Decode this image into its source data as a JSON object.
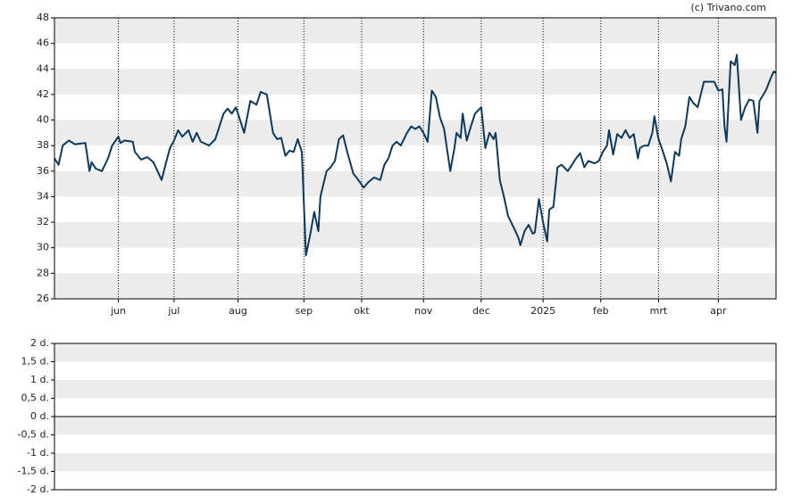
{
  "credit": "(c) Trivano.com",
  "chart_data": [
    {
      "type": "line",
      "grid": true,
      "band_color": "#ececec",
      "xlim": [
        0,
        350
      ],
      "xticks": [
        {
          "value": 31,
          "label": "jun"
        },
        {
          "value": 58,
          "label": "jul"
        },
        {
          "value": 89,
          "label": "aug"
        },
        {
          "value": 121,
          "label": "sep"
        },
        {
          "value": 149,
          "label": "okt"
        },
        {
          "value": 179,
          "label": "nov"
        },
        {
          "value": 207,
          "label": "dec"
        },
        {
          "value": 237,
          "label": "2025"
        },
        {
          "value": 265,
          "label": "feb"
        },
        {
          "value": 293,
          "label": "mrt"
        },
        {
          "value": 322,
          "label": "apr"
        }
      ],
      "ylim": [
        26,
        48
      ],
      "yticks": [
        26,
        28,
        30,
        32,
        34,
        36,
        38,
        40,
        42,
        44,
        46,
        48
      ],
      "series": [
        {
          "color": "#0d3a5c",
          "x": [
            0,
            2,
            4,
            7,
            10,
            15,
            17,
            18,
            20,
            23,
            26,
            28,
            31,
            32,
            34,
            38,
            39,
            42,
            45,
            48,
            52,
            54,
            56,
            58,
            60,
            62,
            65,
            67,
            69,
            71,
            75,
            78,
            80,
            82,
            84,
            86,
            88,
            90,
            92,
            95,
            98,
            100,
            103,
            106,
            108,
            110,
            112,
            114,
            116,
            118,
            120,
            122,
            124,
            126,
            128,
            129,
            132,
            134,
            136,
            138,
            140,
            142,
            145,
            147,
            150,
            152,
            155,
            158,
            160,
            162,
            164,
            166,
            168,
            171,
            173,
            175,
            177,
            179,
            181,
            183,
            185,
            187,
            189,
            192,
            194,
            195,
            197,
            198,
            200,
            202,
            204,
            207,
            209,
            211,
            213,
            214,
            216,
            218,
            220,
            223,
            225,
            226,
            228,
            230,
            232,
            233,
            235,
            237,
            239,
            240,
            242,
            244,
            246,
            249,
            251,
            253,
            255,
            257,
            259,
            262,
            264,
            266,
            268,
            269,
            271,
            273,
            275,
            277,
            279,
            281,
            283,
            284,
            286,
            288,
            290,
            291,
            293,
            295,
            297,
            299,
            301,
            303,
            304,
            306,
            308,
            310,
            312,
            315,
            318,
            320,
            322,
            324,
            325,
            326,
            328,
            330,
            331,
            333,
            335,
            337,
            339,
            341,
            342,
            345,
            348,
            349,
            350
          ],
          "values": [
            37.0,
            36.5,
            38.0,
            38.4,
            38.1,
            38.2,
            36.0,
            36.7,
            36.2,
            36.0,
            37.0,
            38.0,
            38.7,
            38.2,
            38.4,
            38.3,
            37.5,
            36.9,
            37.1,
            36.7,
            35.3,
            36.6,
            37.8,
            38.4,
            39.2,
            38.7,
            39.2,
            38.3,
            39.0,
            38.3,
            38.0,
            38.5,
            39.5,
            40.5,
            40.9,
            40.5,
            41.0,
            40.0,
            39.0,
            41.5,
            41.2,
            42.2,
            42.0,
            39.0,
            38.5,
            38.6,
            37.2,
            37.6,
            37.5,
            38.5,
            37.5,
            29.4,
            31.0,
            32.8,
            31.3,
            34.0,
            36.0,
            36.3,
            36.8,
            38.5,
            38.8,
            37.5,
            35.8,
            35.4,
            34.7,
            35.1,
            35.5,
            35.3,
            36.5,
            37.0,
            38.0,
            38.3,
            38.0,
            39.0,
            39.5,
            39.3,
            39.5,
            39.0,
            38.3,
            42.3,
            41.8,
            40.2,
            39.3,
            36.0,
            37.8,
            39.0,
            38.6,
            40.5,
            38.4,
            39.5,
            40.5,
            41.0,
            37.8,
            39.0,
            38.5,
            39.0,
            35.3,
            34.0,
            32.5,
            31.5,
            30.8,
            30.2,
            31.3,
            31.8,
            31.1,
            31.2,
            33.8,
            32.0,
            30.5,
            33.0,
            33.2,
            36.3,
            36.5,
            36.0,
            36.5,
            37.0,
            37.4,
            36.3,
            36.8,
            36.6,
            36.8,
            37.5,
            38.0,
            39.2,
            37.3,
            38.9,
            38.6,
            39.2,
            38.6,
            38.9,
            37.0,
            37.8,
            38.0,
            38.0,
            39.0,
            40.3,
            38.5,
            37.6,
            36.6,
            35.2,
            37.5,
            37.2,
            38.5,
            39.5,
            41.8,
            41.3,
            41.0,
            43.0,
            43.0,
            43.0,
            42.3,
            42.4,
            39.5,
            38.3,
            44.6,
            44.3,
            45.1,
            40.0,
            41.0,
            41.6,
            41.5,
            39.0,
            41.5,
            42.3,
            43.5,
            43.8,
            43.7
          ]
        }
      ]
    },
    {
      "type": "line",
      "grid": true,
      "band_color": "#ececec",
      "ylim": [
        -2,
        2
      ],
      "yticks": [
        {
          "value": -2,
          "label": "-2 d."
        },
        {
          "value": -1.5,
          "label": "-1,5 d."
        },
        {
          "value": -1,
          "label": "-1 d."
        },
        {
          "value": -0.5,
          "label": "-0,5 d."
        },
        {
          "value": 0,
          "label": "0 d."
        },
        {
          "value": 0.5,
          "label": "0,5 d."
        },
        {
          "value": 1,
          "label": "1 d."
        },
        {
          "value": 1.5,
          "label": "1,5 d."
        },
        {
          "value": 2,
          "label": "2 d."
        }
      ],
      "series": []
    }
  ]
}
